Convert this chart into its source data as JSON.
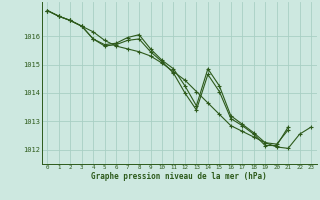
{
  "background_color": "#cde8e0",
  "grid_color": "#a8cfc4",
  "line_color": "#2d5a1b",
  "xlim": [
    -0.5,
    23.5
  ],
  "ylim": [
    1011.5,
    1017.2
  ],
  "yticks": [
    1012,
    1013,
    1014,
    1015,
    1016
  ],
  "xticks": [
    0,
    1,
    2,
    3,
    4,
    5,
    6,
    7,
    8,
    9,
    10,
    11,
    12,
    13,
    14,
    15,
    16,
    17,
    18,
    19,
    20,
    21,
    22,
    23
  ],
  "xlabel": "Graphe pression niveau de la mer (hPa)",
  "series1": [
    1016.9,
    1016.7,
    1016.55,
    1016.35,
    1016.15,
    1015.85,
    1015.65,
    1015.55,
    1015.45,
    1015.3,
    1015.05,
    1014.75,
    1014.45,
    1014.05,
    1013.65,
    1013.25,
    1012.85,
    1012.65,
    1012.45,
    1012.25,
    1012.1,
    1012.05,
    1012.55,
    1012.8
  ],
  "series2": [
    1016.9,
    1016.7,
    1016.55,
    1016.35,
    1015.9,
    1015.7,
    1015.75,
    1015.95,
    1016.05,
    1015.55,
    1015.15,
    1014.85,
    1014.25,
    1013.55,
    1014.85,
    1014.25,
    1013.2,
    1012.9,
    1012.6,
    1012.25,
    1012.2,
    1012.7,
    null,
    null
  ],
  "series3": [
    1016.9,
    1016.7,
    1016.55,
    1016.35,
    1015.9,
    1015.65,
    1015.7,
    1015.85,
    1015.9,
    1015.45,
    1015.1,
    1014.7,
    1014.0,
    1013.4,
    1014.65,
    1014.05,
    1013.1,
    1012.85,
    1012.55,
    1012.15,
    1012.15,
    1012.8,
    null,
    null
  ],
  "marker": "+",
  "markersize": 3.5,
  "linewidth": 0.8
}
